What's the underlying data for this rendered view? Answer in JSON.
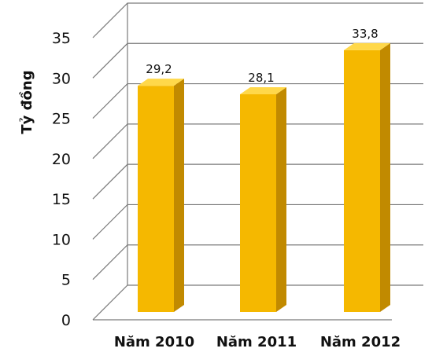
{
  "chart_data": {
    "type": "bar",
    "categories": [
      "Năm 2010",
      "Năm 2011",
      "Năm 2012"
    ],
    "values": [
      29.2,
      28.1,
      33.8
    ],
    "value_labels": [
      "29,2",
      "28,1",
      "33,8"
    ],
    "ylabel": "Tỷ đồng",
    "xlabel": "",
    "title": "",
    "ylim": [
      0,
      35
    ],
    "yticks": [
      0,
      5,
      10,
      15,
      20,
      25,
      30,
      35
    ],
    "grid": true,
    "legend": "none",
    "style": "3d-column",
    "colors": {
      "bar_front": "#F5B800",
      "bar_side": "#C18A00",
      "bar_top": "#FFD84A",
      "gridline": "#7a7a7a"
    }
  }
}
